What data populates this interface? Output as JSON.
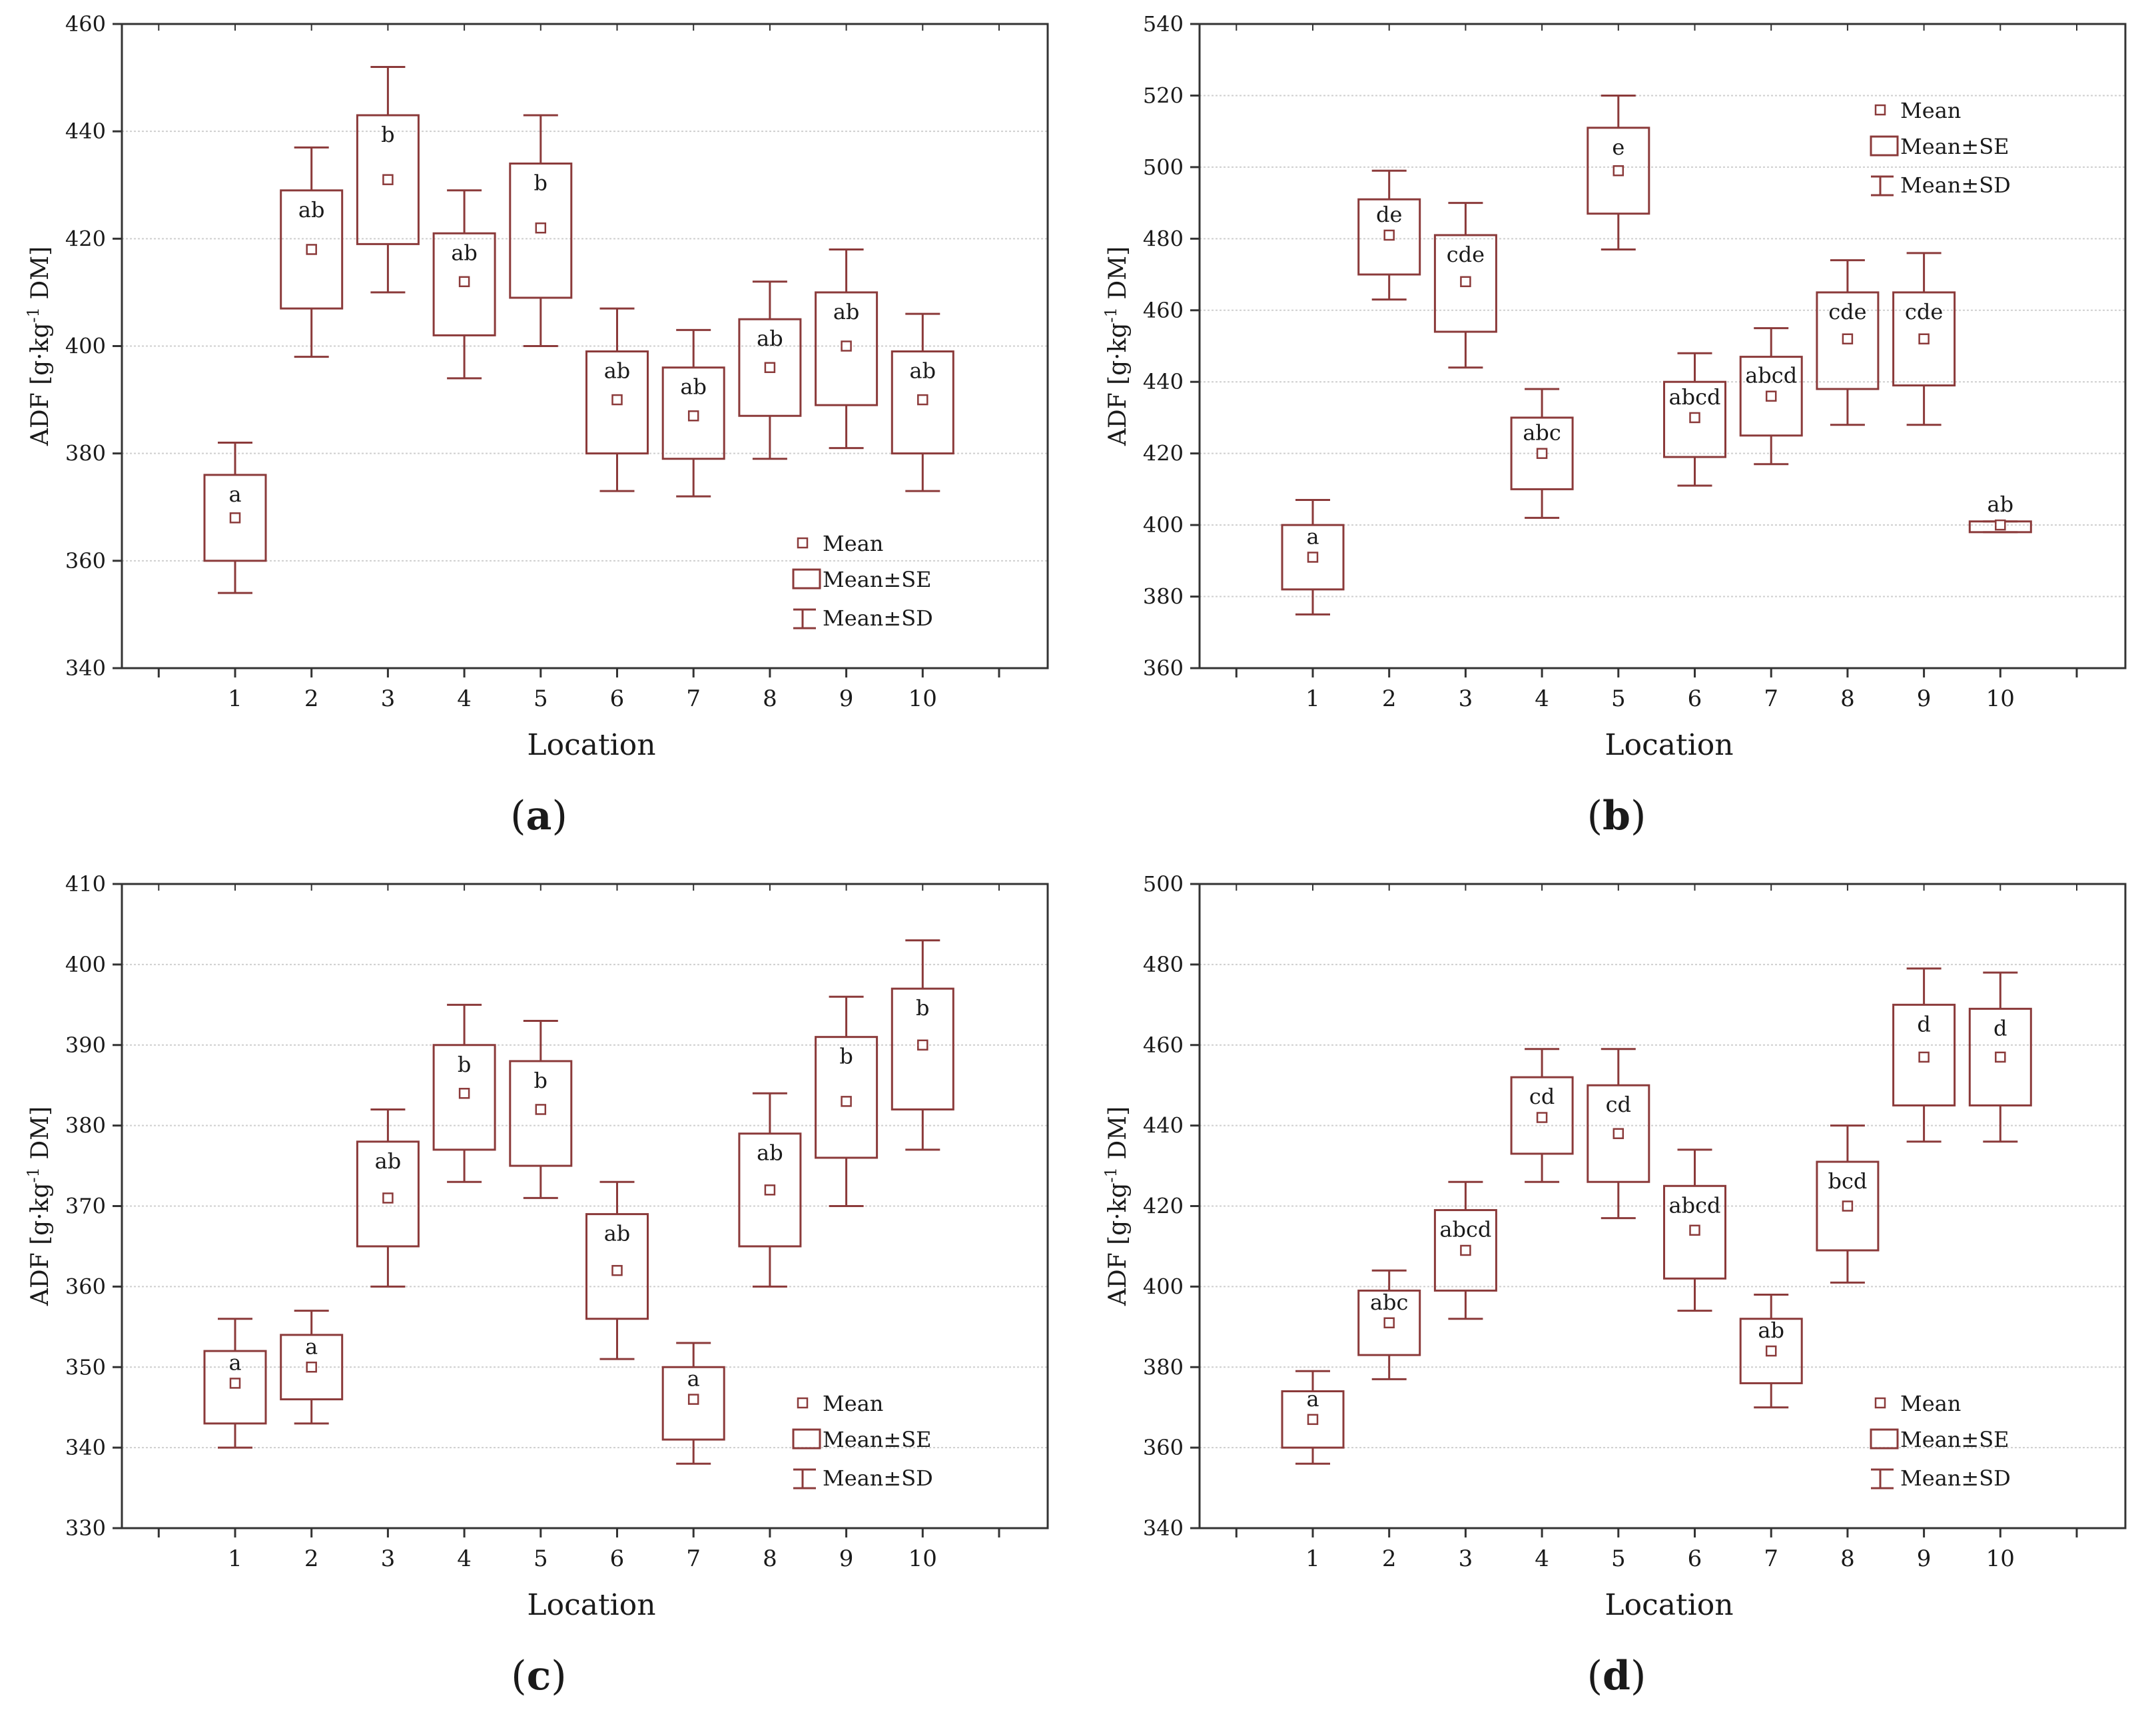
{
  "chart_data": [
    {
      "panel_label": "a",
      "type": "box",
      "ylabel_prefix": "ADF [g·kg",
      "ylabel_sup": "-1",
      "ylabel_suffix": " DM]",
      "xlabel": "Location",
      "ylim": [
        340,
        460
      ],
      "yticks": [
        340,
        360,
        380,
        400,
        420,
        440,
        460
      ],
      "categories": [
        "1",
        "2",
        "3",
        "4",
        "5",
        "6",
        "7",
        "8",
        "9",
        "10"
      ],
      "mean": [
        368,
        418,
        431,
        412,
        422,
        390,
        387,
        396,
        400,
        390
      ],
      "se_low": [
        360,
        407,
        419,
        402,
        409,
        380,
        379,
        387,
        389,
        380
      ],
      "se_high": [
        376,
        429,
        443,
        421,
        434,
        399,
        396,
        405,
        410,
        399
      ],
      "sd_low": [
        354,
        398,
        410,
        394,
        400,
        373,
        372,
        379,
        381,
        373
      ],
      "sd_high": [
        382,
        437,
        452,
        429,
        443,
        407,
        403,
        412,
        418,
        406
      ],
      "letters": [
        "a",
        "ab",
        "b",
        "ab",
        "b",
        "ab",
        "ab",
        "ab",
        "ab",
        "ab"
      ],
      "legend": {
        "mean": "Mean",
        "se": "Mean±SE",
        "sd": "Mean±SD",
        "position": "bottom-right"
      }
    },
    {
      "panel_label": "b",
      "type": "box",
      "ylabel_prefix": "ADF [g·kg",
      "ylabel_sup": "-1",
      "ylabel_suffix": " DM]",
      "xlabel": "Location",
      "ylim": [
        360,
        540
      ],
      "yticks": [
        360,
        380,
        400,
        420,
        440,
        460,
        480,
        500,
        520,
        540
      ],
      "categories": [
        "1",
        "2",
        "3",
        "4",
        "5",
        "6",
        "7",
        "8",
        "9",
        "10"
      ],
      "mean": [
        391,
        481,
        468,
        420,
        499,
        430,
        436,
        452,
        452,
        400
      ],
      "se_low": [
        382,
        470,
        454,
        410,
        487,
        419,
        425,
        438,
        439,
        398
      ],
      "se_high": [
        400,
        491,
        481,
        430,
        511,
        440,
        447,
        465,
        465,
        401
      ],
      "sd_low": [
        375,
        463,
        444,
        402,
        477,
        411,
        417,
        428,
        428,
        398
      ],
      "sd_high": [
        407,
        499,
        490,
        438,
        520,
        448,
        455,
        474,
        476,
        401
      ],
      "letters": [
        "a",
        "de",
        "cde",
        "abc",
        "e",
        "abcd",
        "abcd",
        "cde",
        "cde",
        "ab"
      ],
      "legend": {
        "mean": "Mean",
        "se": "Mean±SE",
        "sd": "Mean±SD",
        "position": "top-right"
      }
    },
    {
      "panel_label": "c",
      "type": "box",
      "ylabel_prefix": "ADF [g·kg",
      "ylabel_sup": "-1",
      "ylabel_suffix": " DM]",
      "xlabel": "Location",
      "ylim": [
        330,
        410
      ],
      "yticks": [
        330,
        340,
        350,
        360,
        370,
        380,
        390,
        400,
        410
      ],
      "categories": [
        "1",
        "2",
        "3",
        "4",
        "5",
        "6",
        "7",
        "8",
        "9",
        "10"
      ],
      "mean": [
        348,
        350,
        371,
        384,
        382,
        362,
        346,
        372,
        383,
        390
      ],
      "se_low": [
        343,
        346,
        365,
        377,
        375,
        356,
        341,
        365,
        376,
        382
      ],
      "se_high": [
        352,
        354,
        378,
        390,
        388,
        369,
        350,
        379,
        391,
        397
      ],
      "sd_low": [
        340,
        343,
        360,
        373,
        371,
        351,
        338,
        360,
        370,
        377
      ],
      "sd_high": [
        356,
        357,
        382,
        395,
        393,
        373,
        353,
        384,
        396,
        403
      ],
      "letters": [
        "a",
        "a",
        "ab",
        "b",
        "b",
        "ab",
        "a",
        "ab",
        "b",
        "b"
      ],
      "legend": {
        "mean": "Mean",
        "se": "Mean±SE",
        "sd": "Mean±SD",
        "position": "bottom-right"
      }
    },
    {
      "panel_label": "d",
      "type": "box",
      "ylabel_prefix": "ADF [g·kg",
      "ylabel_sup": "-1",
      "ylabel_suffix": " DM]",
      "xlabel": "Location",
      "ylim": [
        340,
        500
      ],
      "yticks": [
        340,
        360,
        380,
        400,
        420,
        440,
        460,
        480,
        500
      ],
      "categories": [
        "1",
        "2",
        "3",
        "4",
        "5",
        "6",
        "7",
        "8",
        "9",
        "10"
      ],
      "mean": [
        367,
        391,
        409,
        442,
        438,
        414,
        384,
        420,
        457,
        457
      ],
      "se_low": [
        360,
        383,
        399,
        433,
        426,
        402,
        376,
        409,
        445,
        445
      ],
      "se_high": [
        374,
        399,
        419,
        452,
        450,
        425,
        392,
        431,
        470,
        469
      ],
      "sd_low": [
        356,
        377,
        392,
        426,
        417,
        394,
        370,
        401,
        436,
        436
      ],
      "sd_high": [
        379,
        404,
        426,
        459,
        459,
        434,
        398,
        440,
        479,
        478
      ],
      "letters": [
        "a",
        "abc",
        "abcd",
        "cd",
        "cd",
        "abcd",
        "ab",
        "bcd",
        "d",
        "d"
      ],
      "legend": {
        "mean": "Mean",
        "se": "Mean±SE",
        "sd": "Mean±SD",
        "position": "bottom-right"
      }
    }
  ],
  "colors": {
    "series": "#8B3A3A",
    "axis": "#333333",
    "grid": "#cfcfcf",
    "text": "#1a1a1a"
  }
}
